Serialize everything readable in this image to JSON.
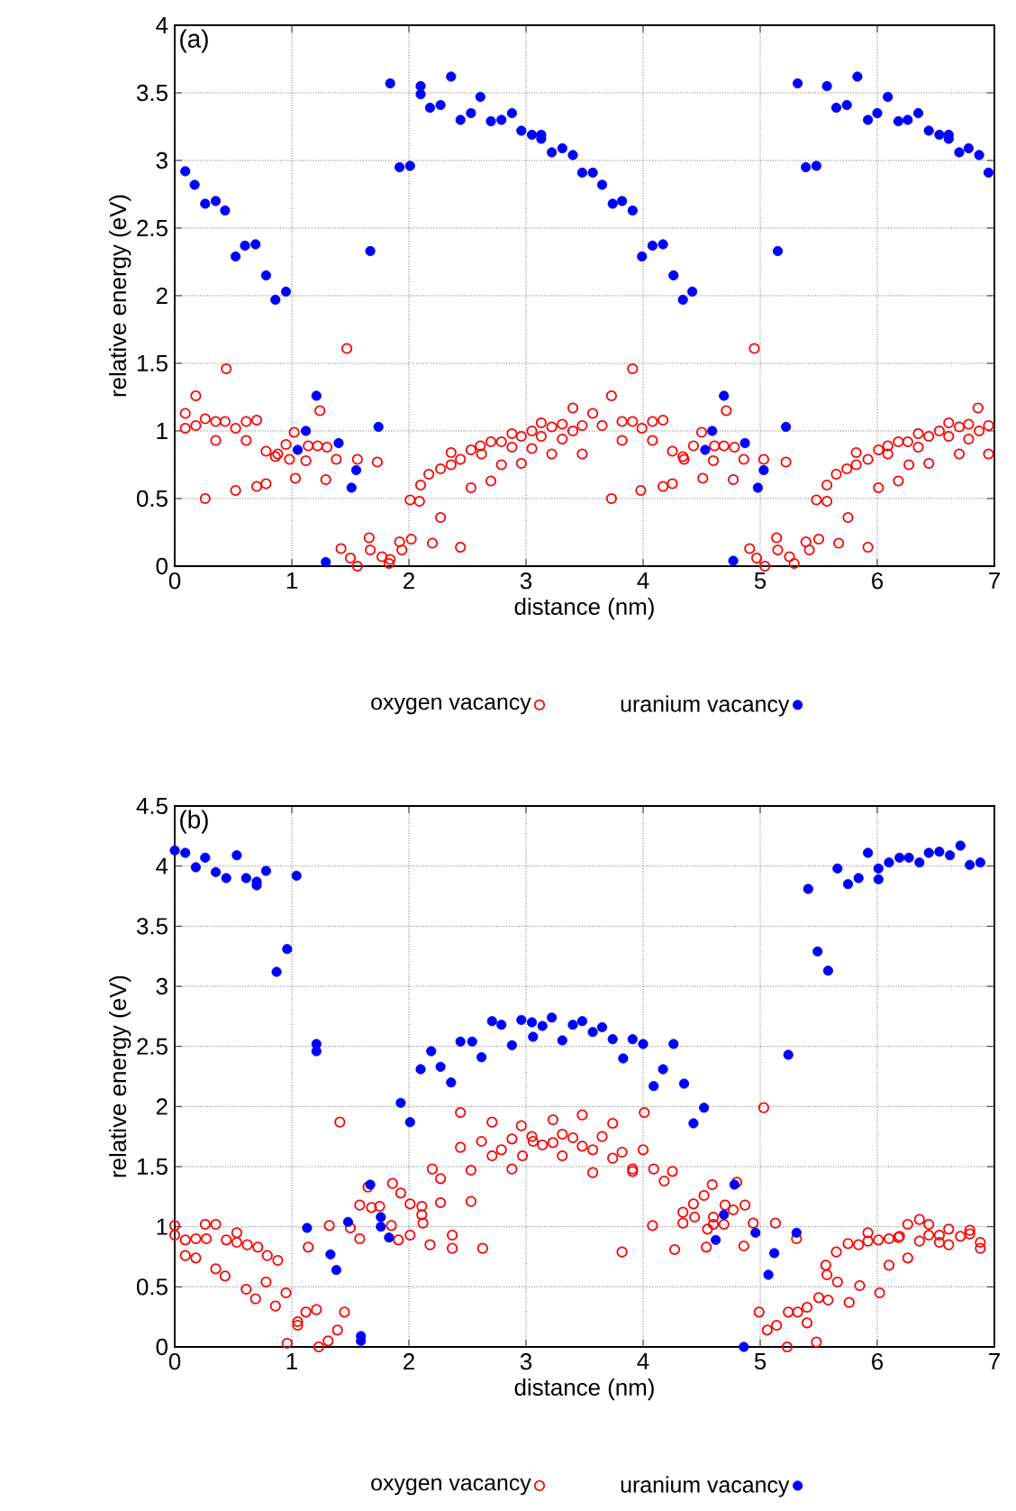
{
  "chart_data": [
    {
      "type": "scatter",
      "title": "(a)",
      "xlabel": "distance (nm)",
      "ylabel": "relative energy (eV)",
      "xlim": [
        0,
        7
      ],
      "ylim": [
        0,
        4
      ],
      "xticks": [
        0,
        1,
        2,
        3,
        4,
        5,
        6,
        7
      ],
      "yticks": [
        0,
        0.5,
        1,
        1.5,
        2,
        2.5,
        3,
        3.5,
        4
      ],
      "grid": true,
      "legend": "bottom",
      "marker": "circle",
      "series": [
        {
          "name": "oxygen vacancy",
          "color": "#ff0000",
          "x": [
            0.09,
            0.09,
            0.18,
            0.18,
            0.26,
            0.26,
            0.35,
            0.35,
            0.43,
            0.44,
            0.52,
            0.52,
            0.61,
            0.61,
            0.7,
            0.7,
            0.78,
            0.78,
            0.86,
            0.88,
            0.95,
            0.98,
            1.02,
            1.03,
            1.12,
            1.14,
            1.22,
            1.24,
            1.29,
            1.3,
            1.38,
            1.42,
            1.47,
            1.5,
            1.56,
            1.56,
            1.66,
            1.67,
            1.73,
            1.77,
            1.83,
            1.84,
            1.92,
            1.94,
            2.01,
            2.02,
            2.09,
            2.1,
            2.17,
            2.2,
            2.27,
            2.27,
            2.36,
            2.36,
            2.44,
            2.44,
            2.53,
            2.53,
            2.61,
            2.62,
            2.7,
            2.7,
            2.79,
            2.79,
            2.88,
            2.88,
            2.96,
            2.96,
            3.05,
            3.05,
            3.13,
            3.13,
            3.22,
            3.22,
            3.31,
            3.31,
            3.4,
            3.4,
            3.48,
            3.48,
            3.57,
            3.65,
            3.73,
            3.73,
            3.82,
            3.82,
            3.91,
            3.91,
            3.98,
            3.99,
            4.08,
            4.08,
            4.17,
            4.17,
            4.25,
            4.25,
            4.34,
            4.35,
            4.43,
            4.5,
            4.51,
            4.6,
            4.61,
            4.69,
            4.71,
            4.77,
            4.78,
            4.86,
            4.91,
            4.95,
            4.97,
            5.03,
            5.04,
            5.14,
            5.15,
            5.22,
            5.25,
            5.29,
            5.39,
            5.42,
            5.48,
            5.5,
            5.57,
            5.57,
            5.65,
            5.67,
            5.74,
            5.75,
            5.82,
            5.82,
            5.92,
            5.92,
            6.01,
            6.01,
            6.09,
            6.09,
            6.18,
            6.18,
            6.26,
            6.27,
            6.35,
            6.35,
            6.44,
            6.44,
            6.53,
            6.61,
            6.61,
            6.7,
            6.7,
            6.78,
            6.78,
            6.86,
            6.87,
            6.95,
            6.95
          ],
          "values": [
            1.13,
            1.02,
            1.26,
            1.04,
            0.5,
            1.09,
            0.93,
            1.07,
            1.07,
            1.46,
            0.56,
            1.02,
            0.93,
            1.07,
            0.59,
            1.08,
            0.61,
            0.85,
            0.81,
            0.83,
            0.9,
            0.79,
            0.99,
            0.65,
            0.78,
            0.89,
            0.89,
            1.15,
            0.64,
            0.88,
            0.79,
            0.13,
            1.61,
            0.06,
            0.79,
            0.0,
            0.21,
            0.12,
            0.77,
            0.07,
            0.02,
            0.05,
            0.18,
            0.12,
            0.49,
            0.2,
            0.48,
            0.6,
            0.68,
            0.17,
            0.72,
            0.36,
            0.84,
            0.75,
            0.79,
            0.14,
            0.58,
            0.86,
            0.89,
            0.83,
            0.92,
            0.63,
            0.92,
            0.75,
            0.98,
            0.88,
            0.96,
            0.76,
            1.0,
            0.87,
            1.06,
            0.96,
            1.03,
            0.83,
            1.05,
            0.94,
            1.17,
            1.0,
            0.83,
            1.04,
            1.13,
            1.04,
            1.26,
            0.5,
            0.93,
            1.07,
            1.07,
            1.46,
            0.56,
            1.02,
            0.93,
            1.07,
            0.59,
            1.08,
            0.61,
            0.85,
            0.81,
            0.79,
            0.89,
            0.99,
            0.65,
            0.78,
            0.89,
            0.89,
            1.15,
            0.64,
            0.88,
            0.79,
            0.13,
            1.61,
            0.06,
            0.79,
            0.0,
            0.21,
            0.12,
            0.77,
            0.07,
            0.02,
            0.18,
            0.12,
            0.49,
            0.2,
            0.48,
            0.6,
            0.68,
            0.17,
            0.72,
            0.36,
            0.84,
            0.75,
            0.79,
            0.14,
            0.58,
            0.86,
            0.89,
            0.83,
            0.92,
            0.63,
            0.92,
            0.75,
            0.98,
            0.88,
            0.96,
            0.76,
            1.0,
            1.06,
            0.96,
            1.03,
            0.83,
            1.05,
            0.94,
            1.17,
            1.0,
            0.83,
            1.04
          ]
        },
        {
          "name": "uranium vacancy",
          "color": "#0000ff",
          "x": [
            0.09,
            0.17,
            0.26,
            0.35,
            0.43,
            0.52,
            0.6,
            0.69,
            0.78,
            0.86,
            0.95,
            1.05,
            1.12,
            1.21,
            1.29,
            1.4,
            1.51,
            1.55,
            1.67,
            1.74,
            1.84,
            1.92,
            2.01,
            2.1,
            2.1,
            2.18,
            2.27,
            2.36,
            2.44,
            2.53,
            2.61,
            2.7,
            2.79,
            2.88,
            2.96,
            3.05,
            3.13,
            3.13,
            3.22,
            3.31,
            3.4,
            3.48,
            3.57,
            3.65,
            3.74,
            3.82,
            3.91,
            3.99,
            4.08,
            4.17,
            4.26,
            4.34,
            4.42,
            4.53,
            4.59,
            4.69,
            4.77,
            4.87,
            4.98,
            5.03,
            5.15,
            5.22,
            5.32,
            5.39,
            5.48,
            5.57,
            5.65,
            5.74,
            5.83,
            5.92,
            6.0,
            6.09,
            6.18,
            6.26,
            6.35,
            6.44,
            6.53,
            6.61,
            6.61,
            6.7,
            6.78,
            6.87,
            6.95
          ],
          "values": [
            2.92,
            2.82,
            2.68,
            2.7,
            2.63,
            2.29,
            2.37,
            2.38,
            2.15,
            1.97,
            2.03,
            0.86,
            1.0,
            1.26,
            0.03,
            0.91,
            0.58,
            0.71,
            2.33,
            1.03,
            3.57,
            2.95,
            2.96,
            3.55,
            3.49,
            3.39,
            3.41,
            3.62,
            3.3,
            3.35,
            3.47,
            3.29,
            3.3,
            3.35,
            3.22,
            3.19,
            3.19,
            3.16,
            3.06,
            3.09,
            3.04,
            2.91,
            2.91,
            2.82,
            2.68,
            2.7,
            2.63,
            2.29,
            2.37,
            2.38,
            2.15,
            1.97,
            2.03,
            0.86,
            1.0,
            1.26,
            0.04,
            0.91,
            0.58,
            0.71,
            2.33,
            1.03,
            3.57,
            2.95,
            2.96,
            3.55,
            3.39,
            3.41,
            3.62,
            3.3,
            3.35,
            3.47,
            3.29,
            3.3,
            3.35,
            3.22,
            3.19,
            3.19,
            3.16,
            3.06,
            3.09,
            3.04,
            2.91
          ]
        }
      ]
    },
    {
      "type": "scatter",
      "title": "(b)",
      "xlabel": "distance (nm)",
      "ylabel": "relative energy (eV)",
      "xlim": [
        0,
        7
      ],
      "ylim": [
        0,
        4.5
      ],
      "xticks": [
        0,
        1,
        2,
        3,
        4,
        5,
        6,
        7
      ],
      "yticks": [
        0,
        0.5,
        1,
        1.5,
        2,
        2.5,
        3,
        3.5,
        4,
        4.5
      ],
      "grid": true,
      "legend": "bottom",
      "marker": "circle",
      "series": [
        {
          "name": "oxygen vacancy",
          "color": "#ff0000",
          "x": [
            0.0,
            0.0,
            0.09,
            0.09,
            0.18,
            0.18,
            0.26,
            0.27,
            0.35,
            0.35,
            0.43,
            0.44,
            0.53,
            0.53,
            0.61,
            0.62,
            0.69,
            0.71,
            0.78,
            0.79,
            0.86,
            0.88,
            0.95,
            0.96,
            1.05,
            1.05,
            1.12,
            1.14,
            1.21,
            1.23,
            1.31,
            1.32,
            1.39,
            1.41,
            1.45,
            1.5,
            1.58,
            1.58,
            1.65,
            1.68,
            1.75,
            1.85,
            1.86,
            1.91,
            1.93,
            2.01,
            2.01,
            2.11,
            2.11,
            2.12,
            2.18,
            2.2,
            2.27,
            2.27,
            2.37,
            2.37,
            2.44,
            2.44,
            2.53,
            2.53,
            2.62,
            2.63,
            2.71,
            2.71,
            2.79,
            2.88,
            2.88,
            2.96,
            2.97,
            3.05,
            3.06,
            3.14,
            3.23,
            3.23,
            3.31,
            3.31,
            3.4,
            3.48,
            3.48,
            3.57,
            3.57,
            3.65,
            3.74,
            3.74,
            3.82,
            3.82,
            3.91,
            3.91,
            4.01,
            4.0,
            4.09,
            4.08,
            4.18,
            4.25,
            4.27,
            4.34,
            4.34,
            4.43,
            4.44,
            4.52,
            4.54,
            4.55,
            4.59,
            4.6,
            4.6,
            4.69,
            4.7,
            4.77,
            4.8,
            4.86,
            4.87,
            4.94,
            4.99,
            5.03,
            5.06,
            5.13,
            5.14,
            5.23,
            5.24,
            5.31,
            5.32,
            5.4,
            5.4,
            5.48,
            5.5,
            5.56,
            5.57,
            5.58,
            5.65,
            5.66,
            5.75,
            5.76,
            5.84,
            5.85,
            5.92,
            5.92,
            6.01,
            6.02,
            6.1,
            6.1,
            6.18,
            6.19,
            6.26,
            6.26,
            6.36,
            6.36,
            6.44,
            6.44,
            6.53,
            6.53,
            6.61,
            6.61,
            6.71,
            6.79,
            6.79,
            6.88,
            6.88
          ],
          "values": [
            1.01,
            0.93,
            0.89,
            0.76,
            0.9,
            0.74,
            1.02,
            0.9,
            1.02,
            0.65,
            0.59,
            0.89,
            0.95,
            0.87,
            0.48,
            0.85,
            0.4,
            0.83,
            0.54,
            0.76,
            0.34,
            0.72,
            0.45,
            0.03,
            0.21,
            0.18,
            0.29,
            0.83,
            0.31,
            0.0,
            0.05,
            1.01,
            0.14,
            1.87,
            0.29,
            0.99,
            0.9,
            1.18,
            1.33,
            1.16,
            1.17,
            1.01,
            1.36,
            0.89,
            1.28,
            1.19,
            0.93,
            1.17,
            1.1,
            1.03,
            0.85,
            1.48,
            1.4,
            1.2,
            0.93,
            0.82,
            1.66,
            1.95,
            1.47,
            1.21,
            1.71,
            0.82,
            1.87,
            1.59,
            1.64,
            1.73,
            1.48,
            1.84,
            1.59,
            1.75,
            1.71,
            1.68,
            1.89,
            1.7,
            1.77,
            1.59,
            1.74,
            1.93,
            1.67,
            1.64,
            1.45,
            1.75,
            1.86,
            1.57,
            1.62,
            0.79,
            1.48,
            1.46,
            1.95,
            1.64,
            1.48,
            1.01,
            1.38,
            1.46,
            0.81,
            1.12,
            1.03,
            1.19,
            1.08,
            1.26,
            0.83,
            0.98,
            1.35,
            1.08,
            1.02,
            1.02,
            1.18,
            1.14,
            1.37,
            0.84,
            1.18,
            1.03,
            0.29,
            1.99,
            0.14,
            1.03,
            0.18,
            0.0,
            0.29,
            0.9,
            0.29,
            0.33,
            0.2,
            0.04,
            0.41,
            0.68,
            0.6,
            0.39,
            0.79,
            0.54,
            0.86,
            0.37,
            0.85,
            0.51,
            0.95,
            0.88,
            0.89,
            0.45,
            0.9,
            0.68,
            0.91,
            0.92,
            1.02,
            0.74,
            1.06,
            0.88,
            1.02,
            0.93,
            0.87,
            0.93,
            0.98,
            0.85,
            0.92,
            0.97,
            0.94,
            0.87,
            0.82
          ]
        },
        {
          "name": "uranium vacancy",
          "color": "#0000ff",
          "x": [
            0.0,
            0.09,
            0.18,
            0.26,
            0.35,
            0.44,
            0.53,
            0.61,
            0.7,
            0.7,
            0.78,
            0.87,
            0.96,
            1.04,
            1.13,
            1.21,
            1.21,
            1.33,
            1.38,
            1.48,
            1.59,
            1.59,
            1.67,
            1.76,
            1.76,
            1.83,
            1.93,
            2.01,
            2.1,
            2.19,
            2.27,
            2.36,
            2.44,
            2.54,
            2.62,
            2.71,
            2.79,
            2.88,
            2.96,
            3.05,
            3.06,
            3.14,
            3.22,
            3.31,
            3.4,
            3.48,
            3.57,
            3.65,
            3.74,
            3.83,
            3.91,
            4.0,
            4.09,
            4.17,
            4.26,
            4.35,
            4.43,
            4.52,
            4.62,
            4.69,
            4.78,
            4.86,
            4.96,
            5.07,
            5.12,
            5.24,
            5.31,
            5.41,
            5.49,
            5.58,
            5.66,
            5.75,
            5.84,
            5.92,
            6.01,
            6.01,
            6.1,
            6.19,
            6.27,
            6.36,
            6.44,
            6.53,
            6.62,
            6.71,
            6.79,
            6.88
          ],
          "values": [
            4.13,
            4.11,
            3.99,
            4.07,
            3.95,
            3.9,
            4.09,
            3.9,
            3.87,
            3.84,
            3.96,
            3.12,
            3.31,
            3.92,
            0.99,
            2.52,
            2.46,
            0.77,
            0.64,
            1.04,
            0.09,
            0.05,
            1.35,
            1.08,
            1.0,
            0.91,
            2.03,
            1.87,
            2.31,
            2.46,
            2.33,
            2.2,
            2.54,
            2.54,
            2.41,
            2.71,
            2.68,
            2.51,
            2.72,
            2.7,
            2.58,
            2.67,
            2.74,
            2.55,
            2.68,
            2.71,
            2.62,
            2.66,
            2.56,
            2.4,
            2.56,
            2.52,
            2.17,
            2.31,
            2.52,
            2.19,
            1.86,
            1.99,
            0.89,
            1.1,
            1.35,
            0.0,
            0.95,
            0.6,
            0.78,
            2.43,
            0.95,
            3.81,
            3.29,
            3.13,
            3.98,
            3.85,
            3.9,
            4.11,
            3.98,
            3.89,
            4.03,
            4.07,
            4.07,
            4.03,
            4.11,
            4.12,
            4.09,
            4.17,
            4.01,
            4.03
          ]
        }
      ]
    }
  ]
}
